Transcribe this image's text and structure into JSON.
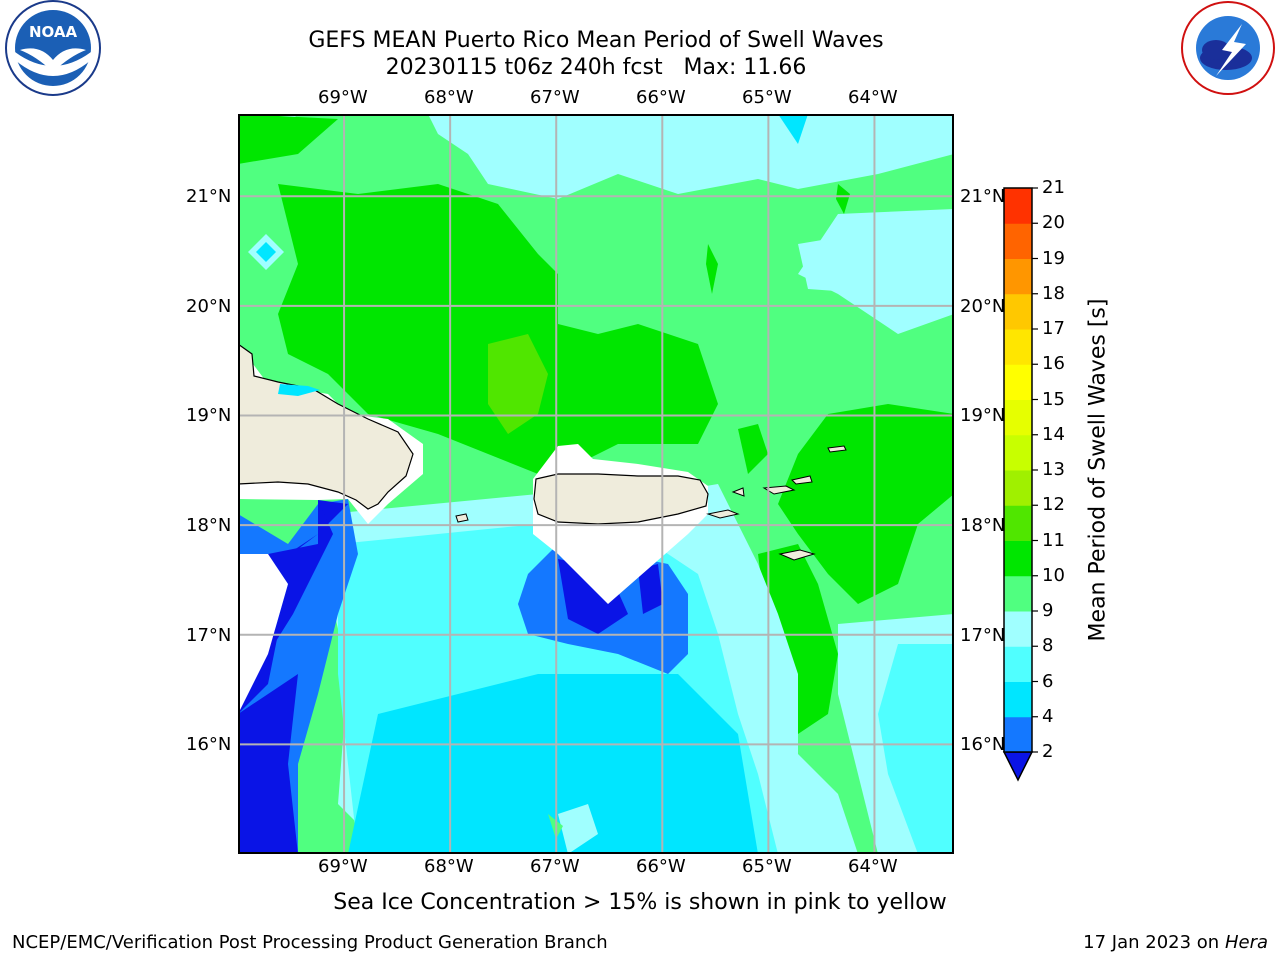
{
  "header": {
    "title_line1": "GEFS MEAN Puerto Rico Mean Period of Swell Waves",
    "title_line2": "20230115 t06z 240h fcst   Max: 11.66"
  },
  "logos": {
    "left": {
      "name": "noaa-logo",
      "text": "NOAA",
      "ring_text": "NATIONAL OCEANIC AND ATMOSPHERIC ADMINISTRATION · U.S. DEPARTMENT OF COMMERCE"
    },
    "right": {
      "name": "nws-logo",
      "ring_text": "NATIONAL WEATHER SERVICE"
    }
  },
  "map": {
    "lon_labels": [
      "69°W",
      "68°W",
      "67°W",
      "66°W",
      "65°W",
      "64°W"
    ],
    "lat_labels": [
      "21°N",
      "20°N",
      "19°N",
      "18°N",
      "17°N",
      "16°N"
    ],
    "lon_range": [
      -70.0,
      -63.25
    ],
    "lat_range": [
      15.0,
      21.75
    ],
    "gridlines": true
  },
  "colorbar": {
    "label": "Mean Period of Swell Waves [s]",
    "ticks": [
      "21",
      "20",
      "19",
      "18",
      "17",
      "16",
      "15",
      "14",
      "13",
      "12",
      "11",
      "10",
      "9",
      "8",
      "6",
      "4",
      "2"
    ],
    "levels": [
      2,
      4,
      6,
      8,
      9,
      10,
      11,
      12,
      13,
      14,
      15,
      16,
      17,
      18,
      19,
      20,
      21
    ],
    "colors": [
      "#0a14e6",
      "#1478ff",
      "#00e6ff",
      "#50ffff",
      "#a0ffff",
      "#50ff80",
      "#00e600",
      "#50e600",
      "#a0f000",
      "#c8ff00",
      "#e6ff00",
      "#ffff00",
      "#ffe600",
      "#ffc800",
      "#ff9600",
      "#ff6400",
      "#ff3200",
      "#ff0000"
    ],
    "extend": "min"
  },
  "caption": "Sea Ice Concentration > 15% is shown in pink to yellow",
  "footer": {
    "left": "NCEP/EMC/Verification Post Processing Product Generation Branch",
    "right_prefix": "17 Jan 2023 on ",
    "right_italic": "Hera"
  }
}
